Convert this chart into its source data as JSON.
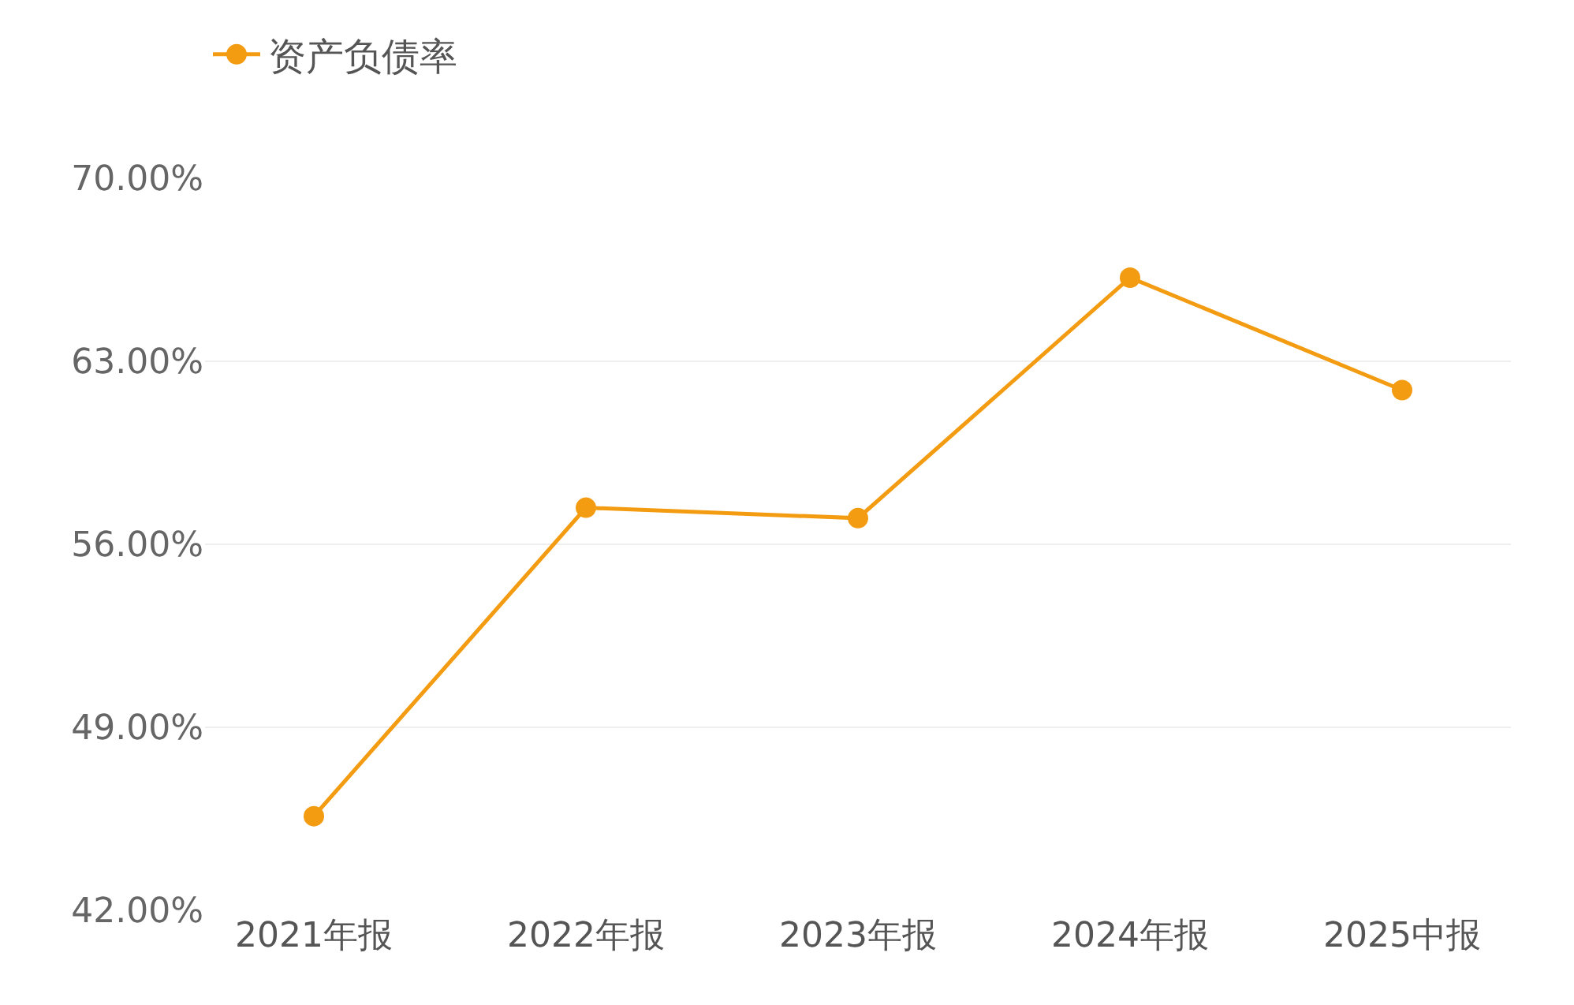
{
  "chart_data": {
    "type": "line",
    "categories": [
      "2021年报",
      "2022年报",
      "2023年报",
      "2024年报",
      "2025中报"
    ],
    "series": [
      {
        "name": "资产负债率",
        "color": "#f39c12",
        "values": [
          45.6,
          57.4,
          57.0,
          66.2,
          61.9
        ]
      }
    ],
    "ylim": [
      42,
      70
    ],
    "yticks": [
      {
        "value": 42,
        "label": "42.00%"
      },
      {
        "value": 49,
        "label": "49.00%"
      },
      {
        "value": 56,
        "label": "56.00%"
      },
      {
        "value": 63,
        "label": "63.00%"
      },
      {
        "value": 70,
        "label": "70.00%"
      }
    ],
    "grid": "y",
    "legend": "top left",
    "marker": "circle",
    "line_style": "solid"
  }
}
